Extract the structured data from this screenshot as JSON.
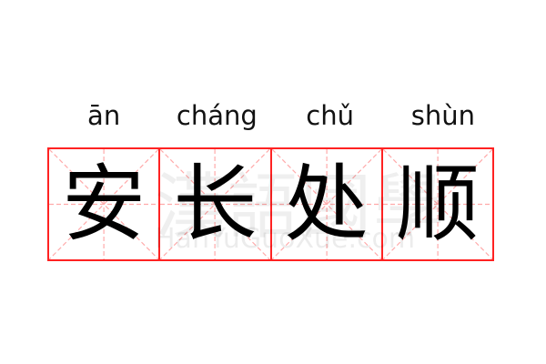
{
  "entries": [
    {
      "pinyin": "ān",
      "hanzi": "安"
    },
    {
      "pinyin": "cháng",
      "hanzi": "长"
    },
    {
      "pinyin": "chǔ",
      "hanzi": "处"
    },
    {
      "pinyin": "shùn",
      "hanzi": "顺"
    }
  ],
  "watermark": {
    "chinese": "漢語國學",
    "latin": "HanYuGuoXue.com"
  },
  "colors": {
    "grid_border": "#ff2222",
    "guide_lines": "#ffaaaa",
    "text": "#000000"
  }
}
